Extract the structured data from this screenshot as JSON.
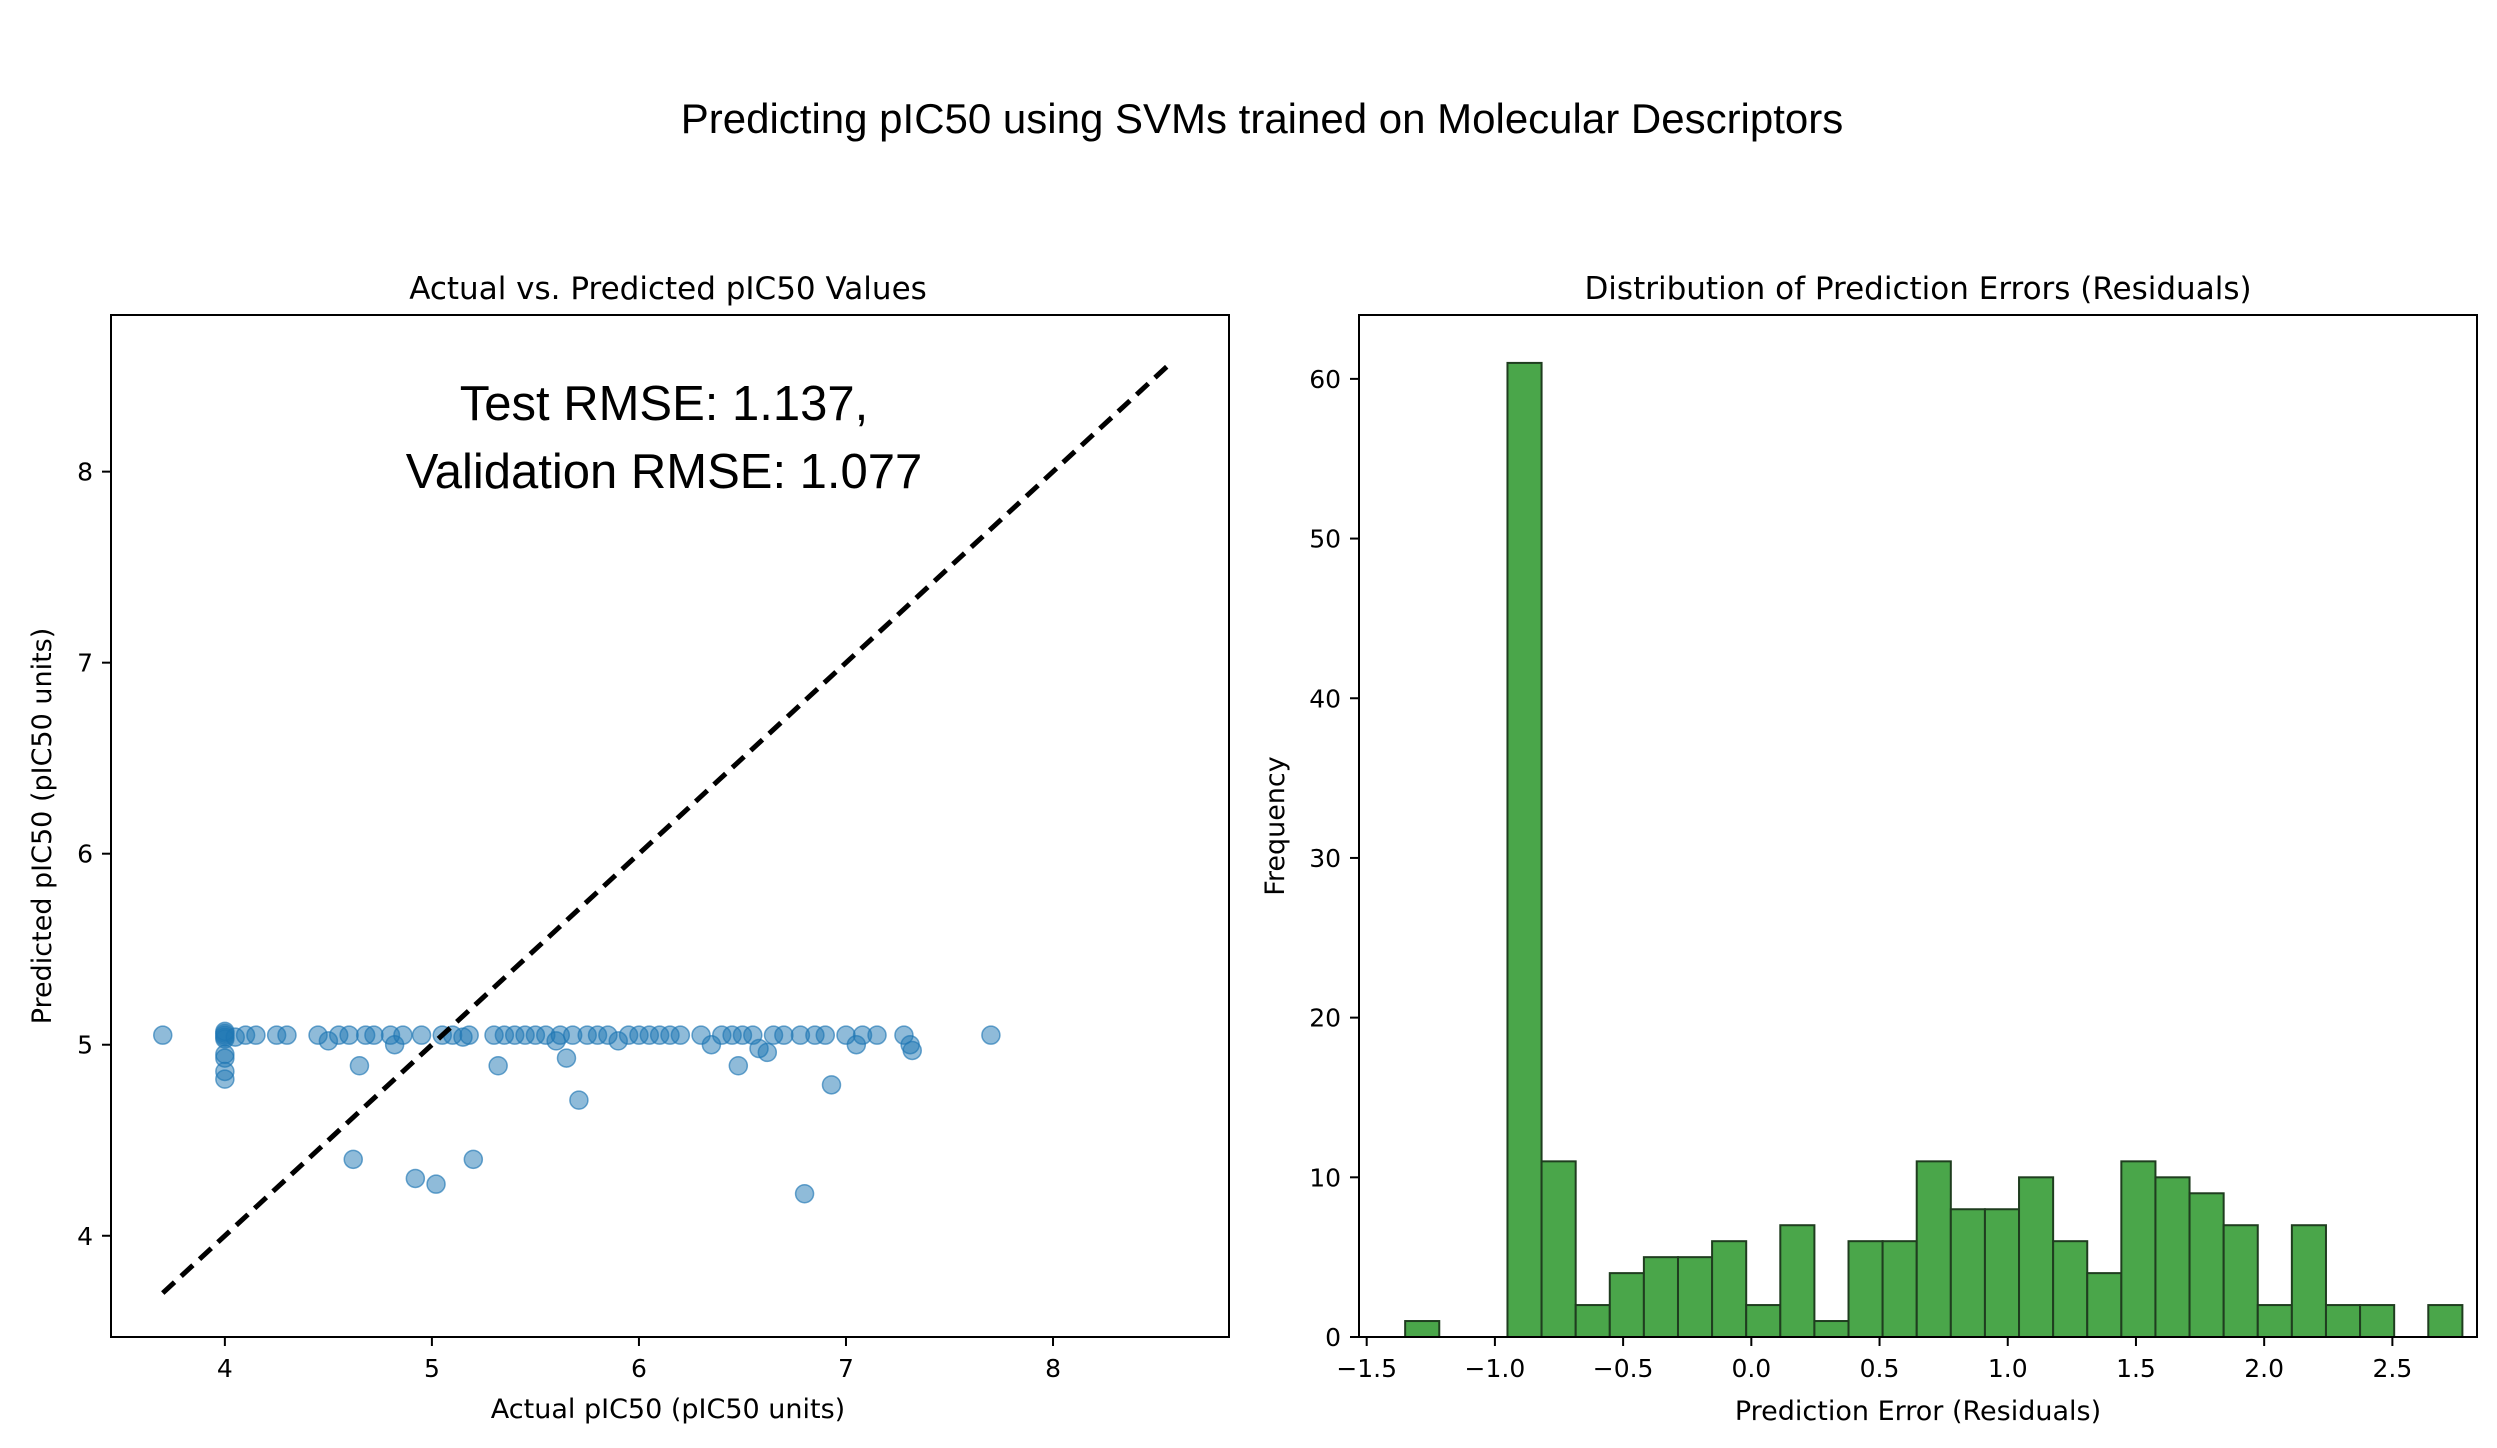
{
  "figure": {
    "suptitle": "Predicting pIC50 using SVMs trained on Molecular Descriptors"
  },
  "chart_data": [
    {
      "type": "scatter",
      "title": "Actual vs. Predicted pIC50 Values",
      "xlabel": "Actual pIC50 (pIC50 units)",
      "ylabel": "Predicted pIC50 (pIC50 units)",
      "xlim": [
        3.45,
        8.85
      ],
      "ylim": [
        3.47,
        8.82
      ],
      "xticks": [
        4,
        5,
        6,
        7,
        8
      ],
      "yticks": [
        4,
        5,
        6,
        7,
        8
      ],
      "grid": false,
      "marker_color": "#1f77b4",
      "marker_alpha": 0.5,
      "annotation": [
        "Test RMSE: 1.137,",
        "Validation RMSE: 1.077"
      ],
      "reference_line": {
        "x": [
          3.7,
          8.58
        ],
        "y": [
          3.7,
          8.58
        ],
        "style": "dashed",
        "color": "#000000"
      },
      "points": [
        [
          3.7,
          5.05
        ],
        [
          4.0,
          5.06
        ],
        [
          4.0,
          5.04
        ],
        [
          4.0,
          5.03
        ],
        [
          4.0,
          5.05
        ],
        [
          4.0,
          5.07
        ],
        [
          4.0,
          4.95
        ],
        [
          4.0,
          4.93
        ],
        [
          4.0,
          4.86
        ],
        [
          4.0,
          4.82
        ],
        [
          4.05,
          5.04
        ],
        [
          4.1,
          5.05
        ],
        [
          4.15,
          5.05
        ],
        [
          4.25,
          5.05
        ],
        [
          4.3,
          5.05
        ],
        [
          4.45,
          5.05
        ],
        [
          4.5,
          5.02
        ],
        [
          4.55,
          5.05
        ],
        [
          4.6,
          5.05
        ],
        [
          4.62,
          4.4
        ],
        [
          4.65,
          4.89
        ],
        [
          4.68,
          5.05
        ],
        [
          4.72,
          5.05
        ],
        [
          4.8,
          5.05
        ],
        [
          4.82,
          5.0
        ],
        [
          4.86,
          5.05
        ],
        [
          4.92,
          4.3
        ],
        [
          4.95,
          5.05
        ],
        [
          5.02,
          4.27
        ],
        [
          5.05,
          5.05
        ],
        [
          5.1,
          5.05
        ],
        [
          5.15,
          5.04
        ],
        [
          5.18,
          5.05
        ],
        [
          5.2,
          4.4
        ],
        [
          5.3,
          5.05
        ],
        [
          5.32,
          4.89
        ],
        [
          5.35,
          5.05
        ],
        [
          5.4,
          5.05
        ],
        [
          5.45,
          5.05
        ],
        [
          5.5,
          5.05
        ],
        [
          5.55,
          5.05
        ],
        [
          5.6,
          5.02
        ],
        [
          5.62,
          5.05
        ],
        [
          5.65,
          4.93
        ],
        [
          5.68,
          5.05
        ],
        [
          5.71,
          4.71
        ],
        [
          5.75,
          5.05
        ],
        [
          5.8,
          5.05
        ],
        [
          5.85,
          5.05
        ],
        [
          5.9,
          5.02
        ],
        [
          5.95,
          5.05
        ],
        [
          6.0,
          5.05
        ],
        [
          6.05,
          5.05
        ],
        [
          6.1,
          5.05
        ],
        [
          6.15,
          5.05
        ],
        [
          6.2,
          5.05
        ],
        [
          6.3,
          5.05
        ],
        [
          6.35,
          5.0
        ],
        [
          6.4,
          5.05
        ],
        [
          6.45,
          5.05
        ],
        [
          6.48,
          4.89
        ],
        [
          6.5,
          5.05
        ],
        [
          6.55,
          5.05
        ],
        [
          6.58,
          4.98
        ],
        [
          6.62,
          4.96
        ],
        [
          6.65,
          5.05
        ],
        [
          6.7,
          5.05
        ],
        [
          6.78,
          5.05
        ],
        [
          6.8,
          4.22
        ],
        [
          6.85,
          5.05
        ],
        [
          6.9,
          5.05
        ],
        [
          6.93,
          4.79
        ],
        [
          7.0,
          5.05
        ],
        [
          7.05,
          5.0
        ],
        [
          7.08,
          5.05
        ],
        [
          7.15,
          5.05
        ],
        [
          7.28,
          5.05
        ],
        [
          7.31,
          5.0
        ],
        [
          7.32,
          4.97
        ],
        [
          7.7,
          5.05
        ]
      ]
    },
    {
      "type": "bar",
      "title": "Distribution of Prediction Errors (Residuals)",
      "xlabel": "Prediction Error (Residuals)",
      "ylabel": "Frequency",
      "xlim": [
        -1.53,
        2.83
      ],
      "ylim": [
        0,
        64
      ],
      "xticks": [
        -1.5,
        -1.0,
        -0.5,
        0.0,
        0.5,
        1.0,
        1.5,
        2.0,
        2.5
      ],
      "xtick_labels": [
        "−1.5",
        "−1.0",
        "−0.5",
        "0.0",
        "0.5",
        "1.0",
        "1.5",
        "2.0",
        "2.5"
      ],
      "yticks": [
        0,
        10,
        20,
        30,
        40,
        50,
        60
      ],
      "grid": false,
      "bar_color": "#4aa64a",
      "edge_color": "#1f3d1f",
      "bin_start": -1.35,
      "bin_width": 0.133,
      "values": [
        1,
        0,
        0,
        61,
        11,
        2,
        4,
        5,
        5,
        6,
        2,
        7,
        1,
        6,
        6,
        11,
        8,
        8,
        10,
        6,
        4,
        11,
        10,
        9,
        7,
        2,
        7,
        2,
        2,
        0,
        2
      ]
    }
  ]
}
